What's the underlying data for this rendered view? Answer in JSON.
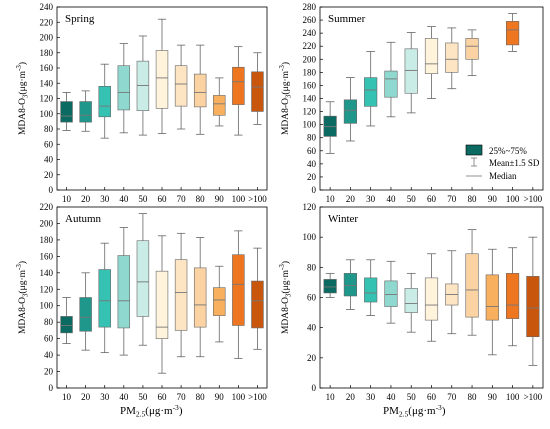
{
  "figure": {
    "ylabel_main": "MDA8-O",
    "ylabel_sub": "3",
    "ylabel_unit": "(μg·m",
    "ylabel_exp": "-3",
    "ylabel_close": ")",
    "xlabel_main": "PM",
    "xlabel_sub": "2.5",
    "xlabel_unit": "(μg·m",
    "xlabel_exp": "-3",
    "xlabel_close": ")"
  },
  "legend": {
    "box_label": "25%~75%",
    "whisker_label": "Mean±1.5 SD",
    "median_label": "Median"
  },
  "colors": [
    "#0b6b63",
    "#1f978b",
    "#36c2b3",
    "#8fd8cf",
    "#c9ece6",
    "#fff3dc",
    "#fde4c2",
    "#fbd2a2",
    "#f8b05f",
    "#ee7620",
    "#c8560d"
  ],
  "chart_data": [
    {
      "type": "box",
      "title": "Spring",
      "categories": [
        "10",
        "20",
        "30",
        "40",
        "50",
        "60",
        "70",
        "80",
        "90",
        "100",
        ">100"
      ],
      "ylim": [
        0,
        240
      ],
      "yticks": [
        0,
        20,
        40,
        60,
        80,
        100,
        120,
        140,
        160,
        180,
        200,
        220,
        240
      ],
      "boxes": [
        {
          "low": 78,
          "q1": 89,
          "median": 97,
          "q3": 116,
          "high": 128
        },
        {
          "low": 77,
          "q1": 89,
          "median": 98,
          "q3": 116,
          "high": 130
        },
        {
          "low": 68,
          "q1": 96,
          "median": 110,
          "q3": 136,
          "high": 165
        },
        {
          "low": 75,
          "q1": 105,
          "median": 128,
          "q3": 163,
          "high": 192
        },
        {
          "low": 72,
          "q1": 104,
          "median": 137,
          "q3": 169,
          "high": 202
        },
        {
          "low": 74,
          "q1": 107,
          "median": 147,
          "q3": 183,
          "high": 224
        },
        {
          "low": 80,
          "q1": 110,
          "median": 139,
          "q3": 163,
          "high": 190
        },
        {
          "low": 73,
          "q1": 109,
          "median": 128,
          "q3": 152,
          "high": 190
        },
        {
          "low": 84,
          "q1": 98,
          "median": 113,
          "q3": 124,
          "high": 147
        },
        {
          "low": 72,
          "q1": 112,
          "median": 142,
          "q3": 161,
          "high": 188
        },
        {
          "low": 86,
          "q1": 103,
          "median": 135,
          "q3": 155,
          "high": 180
        }
      ]
    },
    {
      "type": "box",
      "title": "Summer",
      "categories": [
        "10",
        "20",
        "30",
        "40",
        "50",
        "60",
        "70",
        "80",
        "90",
        "100",
        ">100"
      ],
      "ylim": [
        0,
        280
      ],
      "yticks": [
        0,
        20,
        40,
        60,
        80,
        100,
        120,
        140,
        160,
        180,
        200,
        220,
        240,
        260,
        280
      ],
      "boxes": [
        {
          "low": 56,
          "q1": 82,
          "median": 97,
          "q3": 113,
          "high": 135
        },
        {
          "low": 75,
          "q1": 102,
          "median": 122,
          "q3": 138,
          "high": 172
        },
        {
          "low": 98,
          "q1": 128,
          "median": 153,
          "q3": 172,
          "high": 212
        },
        {
          "low": 112,
          "q1": 142,
          "median": 170,
          "q3": 182,
          "high": 226
        },
        {
          "low": 118,
          "q1": 148,
          "median": 183,
          "q3": 216,
          "high": 241
        },
        {
          "low": 140,
          "q1": 178,
          "median": 193,
          "q3": 232,
          "high": 250
        },
        {
          "low": 155,
          "q1": 180,
          "median": 200,
          "q3": 225,
          "high": 248
        },
        {
          "low": 175,
          "q1": 200,
          "median": 220,
          "q3": 232,
          "high": 245
        },
        null,
        {
          "low": 212,
          "q1": 222,
          "median": 245,
          "q3": 258,
          "high": 270
        },
        null
      ]
    },
    {
      "type": "box",
      "title": "Autumn",
      "categories": [
        "10",
        "20",
        "30",
        "40",
        "50",
        "60",
        "70",
        "80",
        "90",
        "100",
        ">100"
      ],
      "ylim": [
        0,
        220
      ],
      "yticks": [
        0,
        20,
        40,
        60,
        80,
        100,
        120,
        140,
        160,
        180,
        200,
        220
      ],
      "boxes": [
        {
          "low": 54,
          "q1": 67,
          "median": 76,
          "q3": 87,
          "high": 110
        },
        {
          "low": 46,
          "q1": 69,
          "median": 86,
          "q3": 110,
          "high": 140
        },
        {
          "low": 43,
          "q1": 74,
          "median": 106,
          "q3": 144,
          "high": 176
        },
        {
          "low": 40,
          "q1": 73,
          "median": 106,
          "q3": 161,
          "high": 195
        },
        {
          "low": 52,
          "q1": 87,
          "median": 129,
          "q3": 179,
          "high": 212
        },
        {
          "low": 18,
          "q1": 60,
          "median": 74,
          "q3": 142,
          "high": 185
        },
        {
          "low": 38,
          "q1": 70,
          "median": 116,
          "q3": 156,
          "high": 188
        },
        {
          "low": 38,
          "q1": 74,
          "median": 101,
          "q3": 146,
          "high": 183
        },
        {
          "low": 56,
          "q1": 88,
          "median": 107,
          "q3": 122,
          "high": 148
        },
        {
          "low": 36,
          "q1": 76,
          "median": 126,
          "q3": 162,
          "high": 191
        },
        {
          "low": 47,
          "q1": 73,
          "median": 106,
          "q3": 130,
          "high": 170
        }
      ]
    },
    {
      "type": "box",
      "title": "Winter",
      "categories": [
        "10",
        "20",
        "30",
        "40",
        "50",
        "60",
        "70",
        "80",
        "90",
        "100",
        ">100"
      ],
      "ylim": [
        0,
        120
      ],
      "yticks": [
        0,
        20,
        40,
        60,
        80,
        100,
        120
      ],
      "boxes": [
        {
          "low": 60,
          "q1": 63,
          "median": 67,
          "q3": 72,
          "high": 76
        },
        {
          "low": 52,
          "q1": 61,
          "median": 68,
          "q3": 76,
          "high": 85
        },
        {
          "low": 48,
          "q1": 57,
          "median": 63,
          "q3": 73,
          "high": 85
        },
        {
          "low": 43,
          "q1": 54,
          "median": 62,
          "q3": 71,
          "high": 84
        },
        {
          "low": 37,
          "q1": 50,
          "median": 56,
          "q3": 66,
          "high": 76
        },
        {
          "low": 31,
          "q1": 45,
          "median": 55,
          "q3": 73,
          "high": 89
        },
        {
          "low": 36,
          "q1": 55,
          "median": 62,
          "q3": 69,
          "high": 91
        },
        {
          "low": 35,
          "q1": 47,
          "median": 65,
          "q3": 89,
          "high": 105
        },
        {
          "low": 22,
          "q1": 45,
          "median": 54,
          "q3": 75,
          "high": 92
        },
        {
          "low": 28,
          "q1": 46,
          "median": 55,
          "q3": 76,
          "high": 93
        },
        {
          "low": 15,
          "q1": 34,
          "median": 53,
          "q3": 74,
          "high": 100
        }
      ]
    }
  ]
}
